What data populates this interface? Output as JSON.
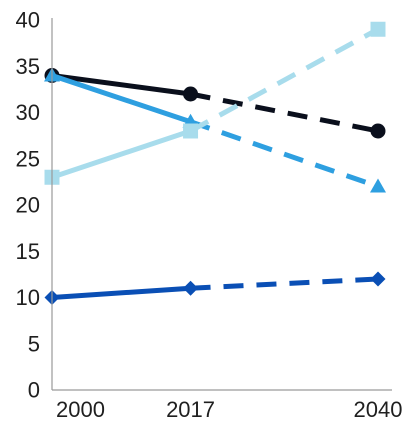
{
  "chart_data": {
    "type": "line",
    "x": [
      2000,
      2017,
      2040
    ],
    "x_tick_labels": [
      "2000",
      "2017",
      "2040"
    ],
    "y_ticks": [
      0,
      5,
      10,
      15,
      20,
      25,
      30,
      35,
      40
    ],
    "ylim": [
      0,
      40
    ],
    "xlim": [
      2000,
      2040
    ],
    "grid": false,
    "legend": "none",
    "title": "",
    "xlabel": "",
    "ylabel": "",
    "series": [
      {
        "color": "#0a0f1c",
        "marker": "circle",
        "values": [
          34,
          32,
          28
        ],
        "solid_until_index": 1
      },
      {
        "color": "#2e9fe0",
        "marker": "triangle",
        "values": [
          34,
          29,
          22
        ],
        "solid_until_index": 1
      },
      {
        "color": "#a8dcec",
        "marker": "square",
        "values": [
          23,
          28,
          39
        ],
        "solid_until_index": 1
      },
      {
        "color": "#0a4fb5",
        "marker": "diamond",
        "values": [
          10,
          11,
          12
        ],
        "solid_until_index": 1
      }
    ]
  }
}
